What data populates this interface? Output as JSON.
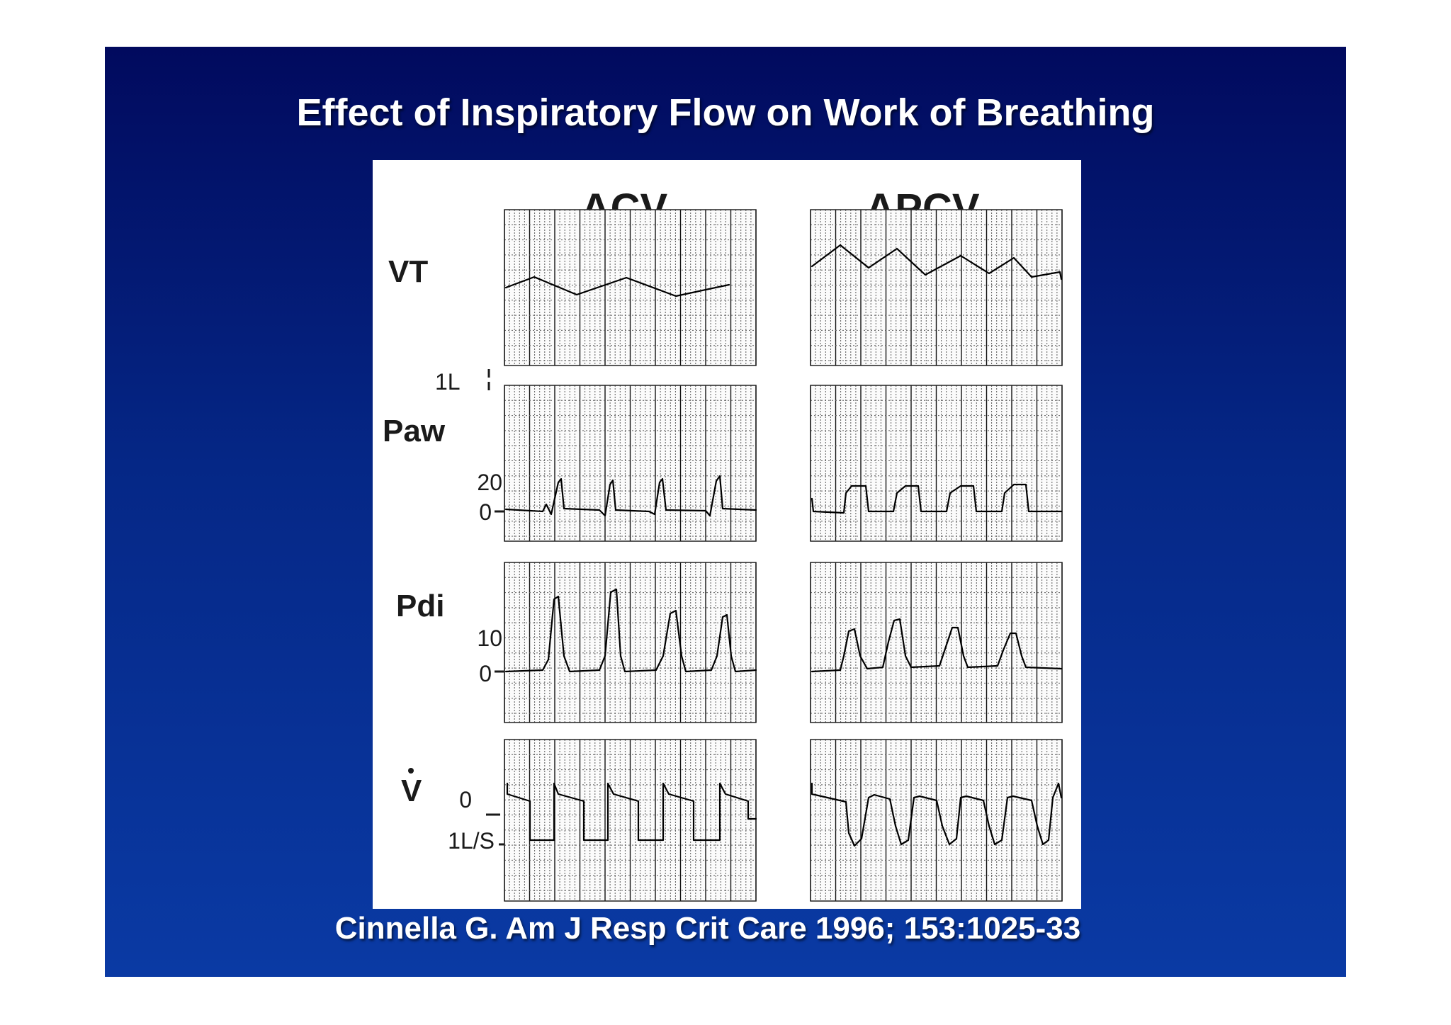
{
  "slide": {
    "title": "Effect of Inspiratory Flow on Work of Breathing",
    "citation": "Cinnella G. Am J Resp Crit Care 1996; 153:1025-33",
    "background_top": "#010a5e",
    "background_bottom": "#0a3aa4"
  },
  "figure": {
    "columns": [
      "ACV",
      "APCV"
    ],
    "rows": [
      {
        "id": "vt",
        "label": "VT",
        "scale_labels": [
          "1L"
        ]
      },
      {
        "id": "paw",
        "label": "Paw",
        "scale_labels": [
          "20",
          "0"
        ]
      },
      {
        "id": "pdi",
        "label": "Pdi",
        "scale_labels": [
          "10",
          "0"
        ]
      },
      {
        "id": "v",
        "label": "V",
        "scale_labels": [
          "0",
          "1L/S"
        ]
      }
    ]
  }
}
